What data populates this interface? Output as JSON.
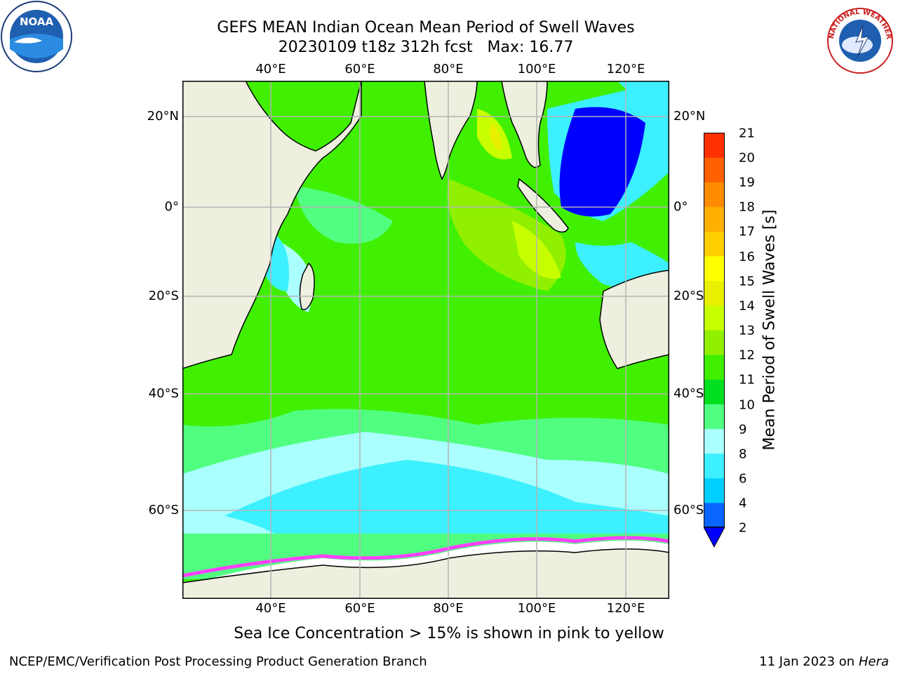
{
  "header": {
    "title_line1": "GEFS MEAN Indian Ocean Mean Period of Swell Waves",
    "title_line2": "20230109 t18z 312h fcst   Max: 16.77"
  },
  "logos": {
    "noaa": {
      "name": "noaa-logo",
      "text": "NOAA"
    },
    "nws": {
      "name": "nws-logo",
      "text": "NATIONAL WEATHER SERVICE"
    }
  },
  "axes": {
    "longitude_ticks": [
      "40°E",
      "60°E",
      "80°E",
      "100°E",
      "120°E"
    ],
    "latitude_ticks": [
      "20°N",
      "0°",
      "20°S",
      "40°S",
      "60°S"
    ]
  },
  "colorbar": {
    "title": "Mean Period of Swell Waves [s]",
    "levels": [
      "2",
      "4",
      "6",
      "8",
      "9",
      "10",
      "11",
      "12",
      "13",
      "14",
      "15",
      "16",
      "17",
      "18",
      "19",
      "20",
      "21"
    ],
    "colors": [
      "#0a64ff",
      "#00d0ff",
      "#3cf0ff",
      "#aaffff",
      "#50ff80",
      "#00e020",
      "#40f000",
      "#90f000",
      "#c8ff00",
      "#e8f000",
      "#ffff00",
      "#ffd000",
      "#ffb000",
      "#ff8c00",
      "#ff6000",
      "#ff3000"
    ],
    "extend_color": "#0000ff"
  },
  "legend": {
    "note": "Sea Ice Concentration > 15% is shown in pink to yellow"
  },
  "footer": {
    "left": "NCEP/EMC/Verification Post Processing Product Generation Branch",
    "date_prefix": "11 Jan 2023 on ",
    "machine": "Hera"
  },
  "map_colors": {
    "land": "#efefdf",
    "grid": "#b4b4b4",
    "coast": "#000000",
    "sea_ice_edge": "#ff40ff"
  }
}
